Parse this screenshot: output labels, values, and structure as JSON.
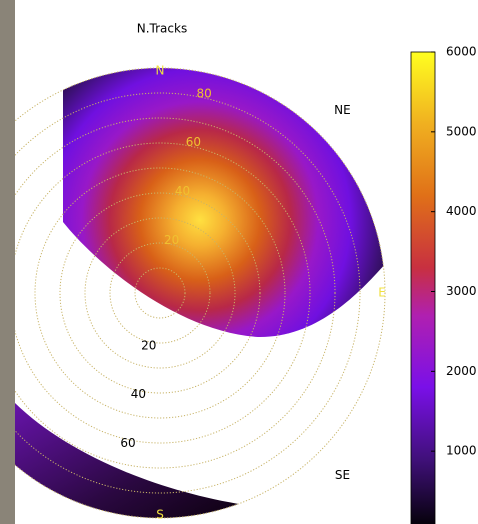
{
  "chart_data": {
    "type": "polar-heatmap",
    "title": "N.Tracks",
    "directions": [
      "N",
      "NE",
      "E",
      "SE",
      "S"
    ],
    "rlim": [
      0,
      90
    ],
    "zenith_labels_north": [
      20,
      40,
      60,
      80
    ],
    "zenith_labels_south": [
      20,
      40,
      60
    ],
    "colorbar": {
      "lim": [
        0,
        6000
      ],
      "ticks": [
        1000,
        2000,
        3000,
        4000,
        5000,
        6000
      ]
    }
  }
}
